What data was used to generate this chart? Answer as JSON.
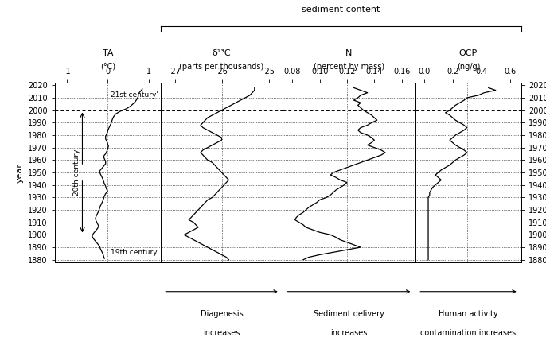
{
  "title": "sediment content",
  "ylabel": "year",
  "year_min": 1878,
  "year_max": 2022,
  "yticks": [
    1880,
    1890,
    1900,
    1910,
    1920,
    1930,
    1940,
    1950,
    1960,
    1970,
    1980,
    1990,
    2000,
    2010,
    2020
  ],
  "dashed_years": [
    2000,
    1900
  ],
  "dotted_years": [
    2010,
    1990,
    1980,
    1970,
    1960,
    1950,
    1940,
    1930,
    1920,
    1910,
    1890,
    1880
  ],
  "panel1": {
    "title": "TA",
    "subtitle": "(°C)",
    "xlim": [
      -1.3,
      1.3
    ],
    "xticks": [
      -1,
      0,
      1
    ],
    "xticklabels": [
      "-1",
      "0",
      "1"
    ],
    "dotted_x": 0.0,
    "data_years": [
      2017,
      2015,
      2013,
      2011,
      2009,
      2007,
      2005,
      2003,
      2001,
      1999,
      1997,
      1995,
      1993,
      1991,
      1989,
      1987,
      1985,
      1983,
      1981,
      1979,
      1977,
      1975,
      1973,
      1971,
      1969,
      1967,
      1965,
      1963,
      1961,
      1959,
      1957,
      1955,
      1953,
      1951,
      1949,
      1947,
      1945,
      1943,
      1941,
      1939,
      1937,
      1935,
      1933,
      1931,
      1929,
      1927,
      1925,
      1923,
      1921,
      1919,
      1917,
      1915,
      1913,
      1911,
      1909,
      1907,
      1905,
      1903,
      1901,
      1899,
      1897,
      1895,
      1893,
      1891,
      1889,
      1887,
      1885,
      1883,
      1881
    ],
    "data_values": [
      0.85,
      0.8,
      0.75,
      0.75,
      0.72,
      0.68,
      0.62,
      0.55,
      0.45,
      0.3,
      0.2,
      0.15,
      0.12,
      0.1,
      0.08,
      0.05,
      0.02,
      0.0,
      -0.02,
      -0.05,
      -0.05,
      -0.02,
      0.0,
      0.02,
      0.0,
      -0.02,
      -0.05,
      -0.1,
      -0.08,
      -0.05,
      -0.05,
      -0.1,
      -0.15,
      -0.2,
      -0.18,
      -0.15,
      -0.12,
      -0.1,
      -0.08,
      -0.05,
      -0.03,
      0.0,
      -0.05,
      -0.08,
      -0.1,
      -0.12,
      -0.15,
      -0.18,
      -0.2,
      -0.22,
      -0.25,
      -0.28,
      -0.3,
      -0.28,
      -0.25,
      -0.22,
      -0.25,
      -0.3,
      -0.35,
      -0.38,
      -0.35,
      -0.3,
      -0.25,
      -0.2,
      -0.18,
      -0.15,
      -0.12,
      -0.1,
      -0.08
    ]
  },
  "panel2": {
    "title": "δ¹³C",
    "subtitle": "(parts per thousands)",
    "xlim": [
      -27.3,
      -24.7
    ],
    "xticks": [
      -27,
      -26,
      -25
    ],
    "xticklabels": [
      "-27",
      "-26",
      "-25"
    ],
    "dotted_x": -26.0,
    "arrow_label": "Diagenesis\nincreases",
    "data_years": [
      2018,
      2016,
      2014,
      2012,
      2010,
      2008,
      2006,
      2004,
      2002,
      2000,
      1998,
      1996,
      1994,
      1992,
      1990,
      1988,
      1986,
      1984,
      1982,
      1980,
      1978,
      1976,
      1974,
      1972,
      1970,
      1968,
      1966,
      1964,
      1962,
      1960,
      1958,
      1956,
      1954,
      1952,
      1950,
      1948,
      1946,
      1944,
      1942,
      1940,
      1938,
      1936,
      1934,
      1932,
      1930,
      1928,
      1926,
      1924,
      1922,
      1920,
      1918,
      1916,
      1914,
      1912,
      1910,
      1908,
      1906,
      1904,
      1902,
      1900,
      1898,
      1896,
      1894,
      1892,
      1890,
      1888,
      1886,
      1884,
      1882,
      1880
    ],
    "data_values": [
      -25.3,
      -25.3,
      -25.35,
      -25.4,
      -25.5,
      -25.6,
      -25.7,
      -25.8,
      -25.9,
      -26.0,
      -26.1,
      -26.2,
      -26.3,
      -26.35,
      -26.4,
      -26.45,
      -26.4,
      -26.3,
      -26.2,
      -26.1,
      -26.0,
      -26.0,
      -26.1,
      -26.2,
      -26.3,
      -26.4,
      -26.45,
      -26.4,
      -26.35,
      -26.3,
      -26.2,
      -26.15,
      -26.1,
      -26.05,
      -26.0,
      -25.95,
      -25.9,
      -25.85,
      -25.9,
      -25.95,
      -26.0,
      -26.05,
      -26.1,
      -26.15,
      -26.2,
      -26.3,
      -26.35,
      -26.4,
      -26.45,
      -26.5,
      -26.55,
      -26.6,
      -26.65,
      -26.7,
      -26.6,
      -26.55,
      -26.5,
      -26.6,
      -26.7,
      -26.8,
      -26.7,
      -26.6,
      -26.5,
      -26.4,
      -26.3,
      -26.2,
      -26.1,
      -26.0,
      -25.9,
      -25.85
    ]
  },
  "panel3": {
    "title": "N",
    "subtitle": "(percent by mass)",
    "xlim": [
      0.073,
      0.17
    ],
    "xticks": [
      0.08,
      0.1,
      0.12,
      0.14,
      0.16
    ],
    "xticklabels": [
      "0.08",
      "0.10",
      "0.12",
      "0.14",
      "0.16"
    ],
    "dotted_x": 0.12,
    "arrow_label": "Sediment delivery\nincreases",
    "data_years": [
      2018,
      2016,
      2014,
      2012,
      2010,
      2008,
      2006,
      2004,
      2002,
      2000,
      1998,
      1996,
      1994,
      1992,
      1990,
      1988,
      1986,
      1984,
      1982,
      1980,
      1978,
      1976,
      1974,
      1972,
      1970,
      1968,
      1966,
      1964,
      1962,
      1960,
      1958,
      1956,
      1954,
      1952,
      1950,
      1948,
      1946,
      1944,
      1942,
      1940,
      1938,
      1936,
      1934,
      1932,
      1930,
      1928,
      1926,
      1924,
      1922,
      1920,
      1918,
      1916,
      1914,
      1912,
      1910,
      1908,
      1906,
      1904,
      1902,
      1900,
      1898,
      1896,
      1894,
      1892,
      1890,
      1888,
      1886,
      1884,
      1882,
      1880
    ],
    "data_values": [
      0.125,
      0.13,
      0.135,
      0.13,
      0.128,
      0.125,
      0.13,
      0.128,
      0.13,
      0.132,
      0.135,
      0.138,
      0.14,
      0.142,
      0.138,
      0.135,
      0.13,
      0.128,
      0.13,
      0.135,
      0.138,
      0.14,
      0.138,
      0.135,
      0.14,
      0.145,
      0.148,
      0.145,
      0.14,
      0.135,
      0.13,
      0.125,
      0.12,
      0.115,
      0.11,
      0.108,
      0.112,
      0.115,
      0.12,
      0.118,
      0.115,
      0.112,
      0.11,
      0.108,
      0.105,
      0.1,
      0.098,
      0.095,
      0.092,
      0.09,
      0.088,
      0.085,
      0.083,
      0.082,
      0.085,
      0.088,
      0.09,
      0.095,
      0.1,
      0.108,
      0.112,
      0.115,
      0.12,
      0.125,
      0.13,
      0.12,
      0.11,
      0.1,
      0.092,
      0.088
    ]
  },
  "panel4": {
    "title": "OCP",
    "subtitle": "(ng/g)",
    "xlim": [
      -0.06,
      0.68
    ],
    "xticks": [
      0.0,
      0.2,
      0.4,
      0.6
    ],
    "xticklabels": [
      "0.0",
      "0.2",
      "0.4",
      "0.6"
    ],
    "dotted_x": 0.3,
    "arrow_label": "Human activity\ncontamination increases",
    "data_years": [
      2018,
      2016,
      2014,
      2012,
      2010,
      2008,
      2006,
      2004,
      2002,
      2000,
      1998,
      1996,
      1994,
      1992,
      1990,
      1988,
      1986,
      1984,
      1982,
      1980,
      1978,
      1976,
      1974,
      1972,
      1970,
      1968,
      1966,
      1964,
      1962,
      1960,
      1958,
      1956,
      1954,
      1952,
      1950,
      1948,
      1946,
      1944,
      1942,
      1940,
      1938,
      1936,
      1934,
      1932,
      1930,
      1928,
      1926,
      1924,
      1922,
      1920,
      1918,
      1916,
      1914,
      1912,
      1910,
      1908,
      1906,
      1904,
      1902,
      1900,
      1898,
      1896,
      1894,
      1892,
      1890,
      1888,
      1886,
      1884,
      1882,
      1880
    ],
    "data_values": [
      0.45,
      0.5,
      0.42,
      0.38,
      0.3,
      0.28,
      0.25,
      0.22,
      0.2,
      0.18,
      0.15,
      0.18,
      0.2,
      0.22,
      0.25,
      0.28,
      0.3,
      0.28,
      0.25,
      0.22,
      0.2,
      0.18,
      0.2,
      0.22,
      0.25,
      0.28,
      0.3,
      0.28,
      0.25,
      0.22,
      0.2,
      0.18,
      0.15,
      0.12,
      0.1,
      0.08,
      0.1,
      0.12,
      0.1,
      0.08,
      0.06,
      0.05,
      0.04,
      0.04,
      0.03,
      0.03,
      0.03,
      0.03,
      0.03,
      0.03,
      0.03,
      0.03,
      0.03,
      0.03,
      0.03,
      0.03,
      0.03,
      0.03,
      0.03,
      0.03,
      0.03,
      0.03,
      0.03,
      0.03,
      0.03,
      0.03,
      0.03,
      0.03,
      0.03,
      0.03
    ]
  }
}
